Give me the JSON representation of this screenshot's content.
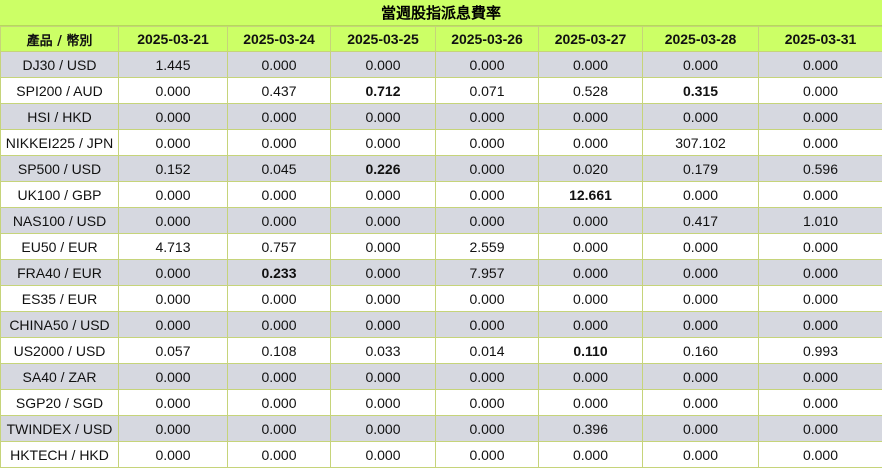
{
  "title": "當週股指派息費率",
  "header": {
    "product_label": "產品 / 幣別",
    "dates": [
      "2025-03-21",
      "2025-03-24",
      "2025-03-25",
      "2025-03-26",
      "2025-03-27",
      "2025-03-28",
      "2025-03-31"
    ]
  },
  "rows": [
    {
      "product": "DJ30 / USD",
      "values": [
        "1.445",
        "0.000",
        "0.000",
        "0.000",
        "0.000",
        "0.000",
        "0.000"
      ],
      "bold": []
    },
    {
      "product": "SPI200 / AUD",
      "values": [
        "0.000",
        "0.437",
        "0.712",
        "0.071",
        "0.528",
        "0.315",
        "0.000"
      ],
      "bold": [
        2,
        5
      ]
    },
    {
      "product": "HSI / HKD",
      "values": [
        "0.000",
        "0.000",
        "0.000",
        "0.000",
        "0.000",
        "0.000",
        "0.000"
      ],
      "bold": []
    },
    {
      "product": "NIKKEI225 / JPN",
      "values": [
        "0.000",
        "0.000",
        "0.000",
        "0.000",
        "0.000",
        "307.102",
        "0.000"
      ],
      "bold": []
    },
    {
      "product": "SP500 / USD",
      "values": [
        "0.152",
        "0.045",
        "0.226",
        "0.000",
        "0.020",
        "0.179",
        "0.596"
      ],
      "bold": [
        2
      ]
    },
    {
      "product": "UK100 / GBP",
      "values": [
        "0.000",
        "0.000",
        "0.000",
        "0.000",
        "12.661",
        "0.000",
        "0.000"
      ],
      "bold": [
        4
      ]
    },
    {
      "product": "NAS100 / USD",
      "values": [
        "0.000",
        "0.000",
        "0.000",
        "0.000",
        "0.000",
        "0.417",
        "1.010"
      ],
      "bold": []
    },
    {
      "product": "EU50 / EUR",
      "values": [
        "4.713",
        "0.757",
        "0.000",
        "2.559",
        "0.000",
        "0.000",
        "0.000"
      ],
      "bold": []
    },
    {
      "product": "FRA40 / EUR",
      "values": [
        "0.000",
        "0.233",
        "0.000",
        "7.957",
        "0.000",
        "0.000",
        "0.000"
      ],
      "bold": [
        1
      ]
    },
    {
      "product": "ES35 / EUR",
      "values": [
        "0.000",
        "0.000",
        "0.000",
        "0.000",
        "0.000",
        "0.000",
        "0.000"
      ],
      "bold": []
    },
    {
      "product": "CHINA50 / USD",
      "values": [
        "0.000",
        "0.000",
        "0.000",
        "0.000",
        "0.000",
        "0.000",
        "0.000"
      ],
      "bold": []
    },
    {
      "product": "US2000 / USD",
      "values": [
        "0.057",
        "0.108",
        "0.033",
        "0.014",
        "0.110",
        "0.160",
        "0.993"
      ],
      "bold": [
        4
      ]
    },
    {
      "product": "SA40 / ZAR",
      "values": [
        "0.000",
        "0.000",
        "0.000",
        "0.000",
        "0.000",
        "0.000",
        "0.000"
      ],
      "bold": []
    },
    {
      "product": "SGP20 / SGD",
      "values": [
        "0.000",
        "0.000",
        "0.000",
        "0.000",
        "0.000",
        "0.000",
        "0.000"
      ],
      "bold": []
    },
    {
      "product": "TWINDEX / USD",
      "values": [
        "0.000",
        "0.000",
        "0.000",
        "0.000",
        "0.396",
        "0.000",
        "0.000"
      ],
      "bold": []
    },
    {
      "product": "HKTECH / HKD",
      "values": [
        "0.000",
        "0.000",
        "0.000",
        "0.000",
        "0.000",
        "0.000",
        "0.000"
      ],
      "bold": []
    }
  ],
  "colors": {
    "header_bg": "#ccff66",
    "shaded_row_bg": "#d6d8e0",
    "plain_row_bg": "#ffffff",
    "border": "#c6d47a"
  }
}
